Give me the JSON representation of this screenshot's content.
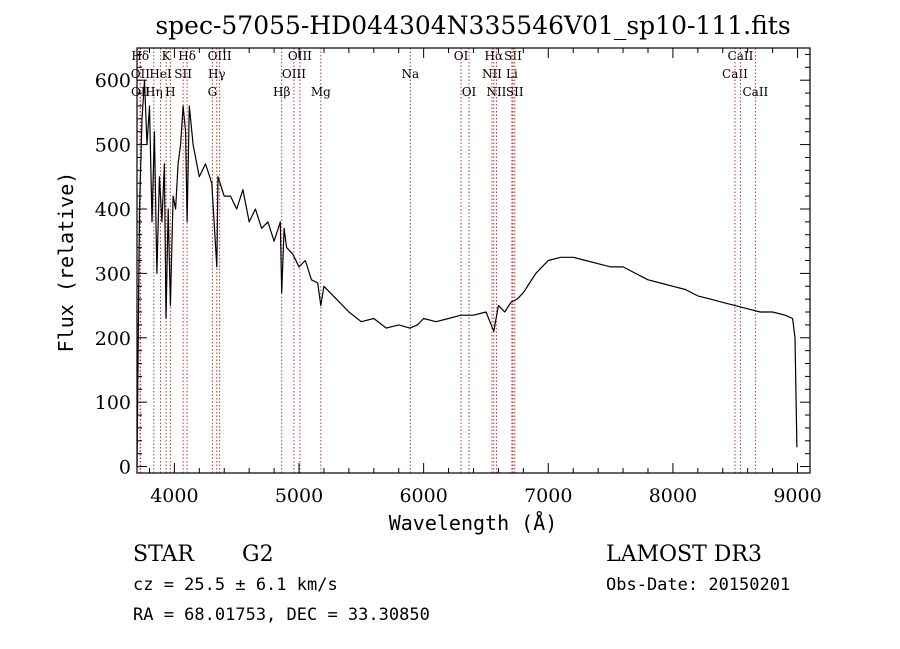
{
  "chart_data": {
    "type": "line",
    "title": "spec-57055-HD044304N335546V01_sp10-111.fits",
    "xlabel": "Wavelength (Å)",
    "ylabel": "Flux (relative)",
    "xlim": [
      3700,
      9100
    ],
    "ylim": [
      -10,
      650
    ],
    "xticks": [
      4000,
      5000,
      6000,
      7000,
      8000,
      9000
    ],
    "yticks": [
      0,
      100,
      200,
      300,
      400,
      500,
      600
    ],
    "series": [
      {
        "name": "spectrum",
        "x": [
          3700,
          3720,
          3740,
          3760,
          3780,
          3800,
          3820,
          3840,
          3860,
          3880,
          3900,
          3920,
          3933,
          3950,
          3968,
          3990,
          4010,
          4030,
          4050,
          4070,
          4090,
          4102,
          4120,
          4150,
          4200,
          4250,
          4300,
          4340,
          4350,
          4400,
          4450,
          4500,
          4550,
          4600,
          4650,
          4700,
          4750,
          4800,
          4850,
          4861,
          4880,
          4900,
          4950,
          5000,
          5050,
          5100,
          5150,
          5175,
          5200,
          5300,
          5400,
          5500,
          5600,
          5700,
          5800,
          5890,
          5950,
          6000,
          6100,
          6200,
          6300,
          6400,
          6500,
          6563,
          6600,
          6650,
          6700,
          6750,
          6800,
          6850,
          6900,
          6950,
          7000,
          7100,
          7200,
          7300,
          7400,
          7500,
          7600,
          7700,
          7800,
          7900,
          8000,
          8100,
          8200,
          8300,
          8400,
          8500,
          8600,
          8700,
          8800,
          8900,
          8960,
          8980,
          8995
        ],
        "y": [
          0,
          400,
          540,
          600,
          500,
          560,
          380,
          520,
          300,
          450,
          380,
          470,
          230,
          400,
          250,
          420,
          400,
          470,
          500,
          560,
          520,
          380,
          560,
          500,
          450,
          470,
          440,
          310,
          450,
          420,
          420,
          400,
          430,
          380,
          400,
          370,
          380,
          350,
          380,
          270,
          370,
          340,
          330,
          310,
          320,
          290,
          285,
          250,
          280,
          260,
          240,
          225,
          230,
          215,
          220,
          215,
          220,
          230,
          225,
          230,
          235,
          235,
          240,
          210,
          250,
          240,
          255,
          260,
          270,
          285,
          300,
          310,
          320,
          325,
          325,
          320,
          315,
          310,
          310,
          300,
          290,
          285,
          280,
          275,
          265,
          260,
          255,
          250,
          245,
          240,
          240,
          235,
          230,
          200,
          30
        ]
      }
    ],
    "spectral_lines": [
      {
        "label": "Hδ",
        "x": 3726,
        "row": 0
      },
      {
        "label": "OII",
        "x": 3727,
        "row": 1
      },
      {
        "label": "OII",
        "x": 3729,
        "row": 2
      },
      {
        "label": "Hη",
        "x": 3835,
        "row": 2
      },
      {
        "label": "HeI",
        "x": 3889,
        "row": 1
      },
      {
        "label": "K",
        "x": 3934,
        "row": 0
      },
      {
        "label": "H",
        "x": 3968,
        "row": 2
      },
      {
        "label": "SII",
        "x": 4070,
        "row": 1
      },
      {
        "label": "Hδ",
        "x": 4102,
        "row": 0
      },
      {
        "label": "Hγ",
        "x": 4340,
        "row": 1
      },
      {
        "label": "G",
        "x": 4305,
        "row": 2
      },
      {
        "label": "OIII",
        "x": 4363,
        "row": 0
      },
      {
        "label": "Hβ",
        "x": 4861,
        "row": 2
      },
      {
        "label": "OIII",
        "x": 4959,
        "row": 1
      },
      {
        "label": "OIII",
        "x": 5007,
        "row": 0
      },
      {
        "label": "Mg",
        "x": 5175,
        "row": 2
      },
      {
        "label": "Na",
        "x": 5893,
        "row": 1
      },
      {
        "label": "OI",
        "x": 6300,
        "row": 0
      },
      {
        "label": "OI",
        "x": 6364,
        "row": 2
      },
      {
        "label": "NII",
        "x": 6548,
        "row": 1
      },
      {
        "label": "Hα",
        "x": 6563,
        "row": 0
      },
      {
        "label": "NII",
        "x": 6584,
        "row": 2
      },
      {
        "label": "SII",
        "x": 6717,
        "row": 0
      },
      {
        "label": "Li",
        "x": 6708,
        "row": 1
      },
      {
        "label": "SII",
        "x": 6731,
        "row": 2
      },
      {
        "label": "CaII",
        "x": 8498,
        "row": 1
      },
      {
        "label": "CaII",
        "x": 8542,
        "row": 0
      },
      {
        "label": "CaII",
        "x": 8662,
        "row": 2
      }
    ]
  },
  "info": {
    "class_label": "STAR",
    "subclass": "G2",
    "survey": "LAMOST DR3",
    "cz": "cz = 25.5 ± 6.1 km/s",
    "obs_date": "Obs-Date: 20150201",
    "radec": "RA =  68.01753, DEC =  33.30850"
  },
  "colors": {
    "line_markers": "#c0392b",
    "spectrum": "#000000"
  }
}
